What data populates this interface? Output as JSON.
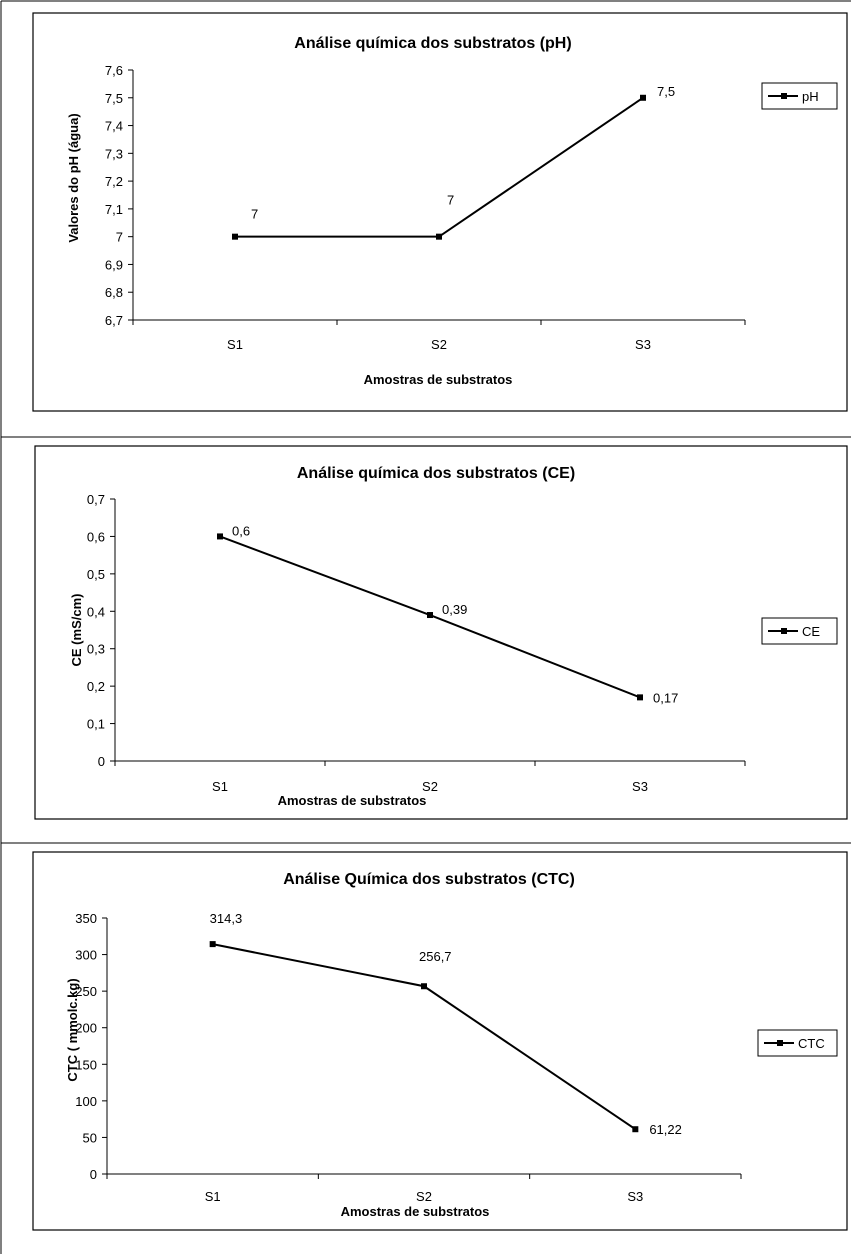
{
  "chart_data": [
    {
      "type": "line",
      "title": "Análise química dos substratos (pH)",
      "xlabel": "Amostras de substratos",
      "ylabel": "Valores do pH (água)",
      "categories": [
        "S1",
        "S2",
        "S3"
      ],
      "series": [
        {
          "name": "pH",
          "values": [
            7,
            7,
            7.5
          ],
          "labels": [
            "7",
            "7",
            "7,5"
          ]
        }
      ],
      "ylim": [
        6.7,
        7.6
      ],
      "yticks": [
        "6,7",
        "6,8",
        "6,9",
        "7",
        "7,1",
        "7,2",
        "7,3",
        "7,4",
        "7,5",
        "7,6"
      ],
      "grid": false,
      "legend": "right",
      "line_color": "#000000"
    },
    {
      "type": "line",
      "title": "Análise química dos substratos (CE)",
      "xlabel": "Amostras de substratos",
      "ylabel": "CE (mS/cm)",
      "categories": [
        "S1",
        "S2",
        "S3"
      ],
      "series": [
        {
          "name": "CE",
          "values": [
            0.6,
            0.39,
            0.17
          ],
          "labels": [
            "0,6",
            "0,39",
            "0,17"
          ]
        }
      ],
      "ylim": [
        0,
        0.7
      ],
      "yticks": [
        "0",
        "0,1",
        "0,2",
        "0,3",
        "0,4",
        "0,5",
        "0,6",
        "0,7"
      ],
      "grid": false,
      "legend": "right",
      "line_color": "#000000"
    },
    {
      "type": "line",
      "title": "Análise Química dos substratos  (CTC)",
      "xlabel": "Amostras de substratos",
      "ylabel": "CTC ( mmolc.kg)",
      "categories": [
        "S1",
        "S2",
        "S3"
      ],
      "series": [
        {
          "name": "CTC",
          "values": [
            314.3,
            256.7,
            61.22
          ],
          "labels": [
            "314,3",
            "256,7",
            "61,22"
          ]
        }
      ],
      "ylim": [
        0,
        350
      ],
      "yticks": [
        "0",
        "50",
        "100",
        "150",
        "200",
        "250",
        "300",
        "350"
      ],
      "grid": false,
      "legend": "right",
      "line_color": "#000000"
    }
  ]
}
